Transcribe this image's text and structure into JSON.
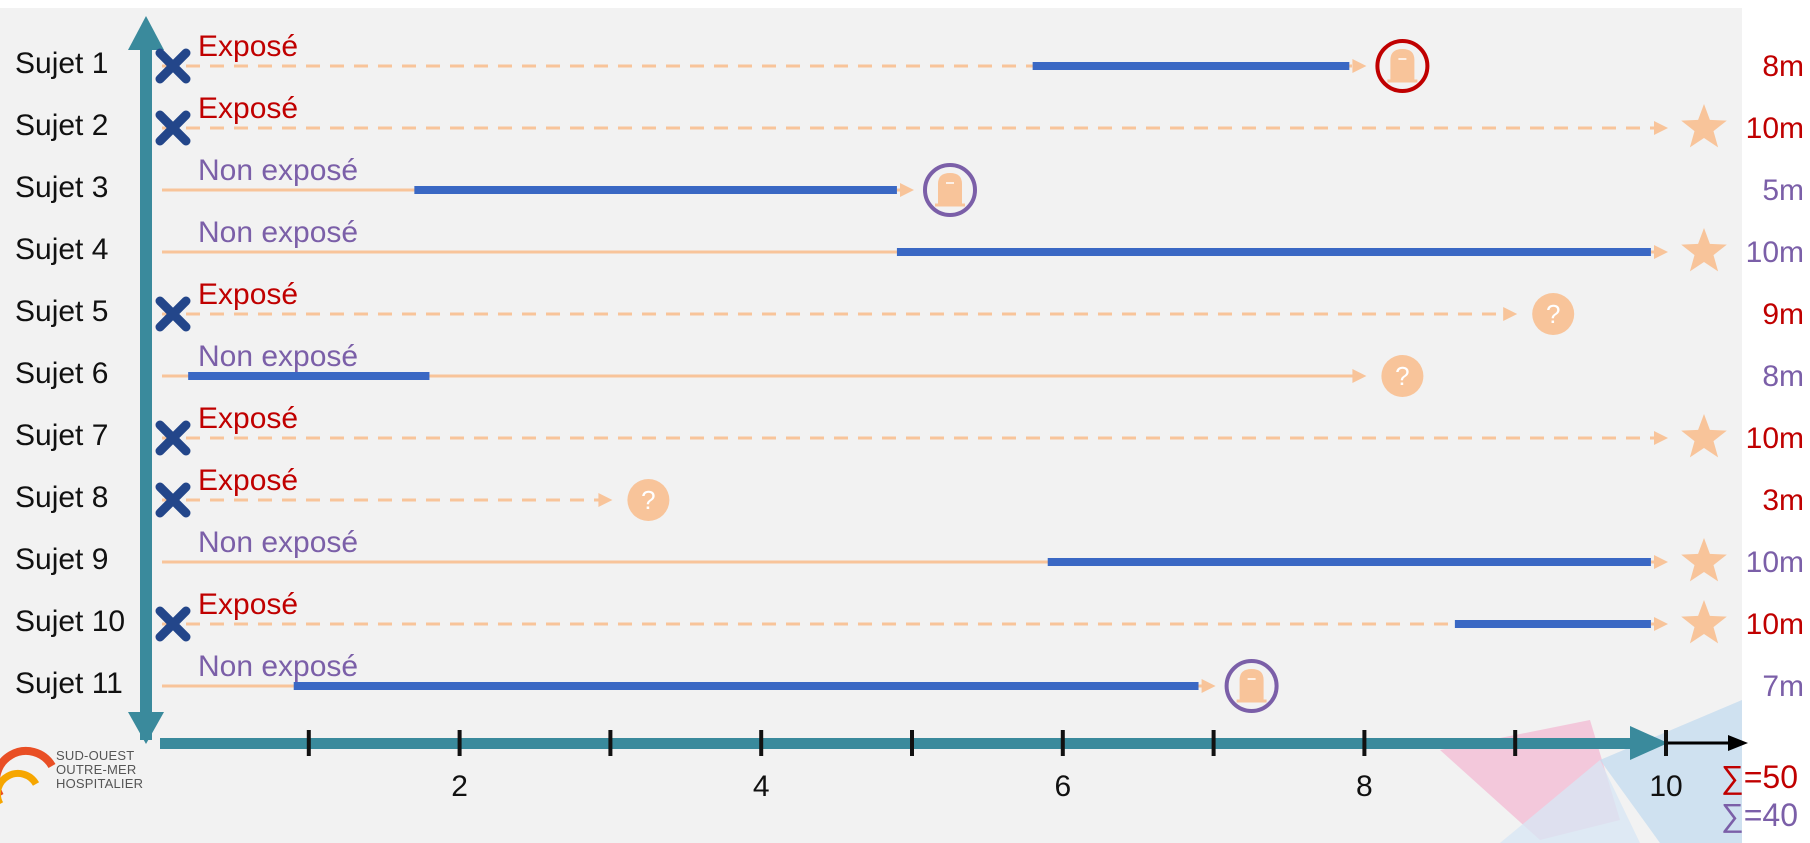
{
  "colors": {
    "exposed": "#c00000",
    "unexposed": "#7b5fa8",
    "axis": "#3a8a9c",
    "followup": "#f8c49a",
    "event_bar": "#3a68c4",
    "icon": "#f8c49a"
  },
  "subjects": [
    {
      "label": "Sujet 1",
      "status": "Exposé",
      "exposed": true,
      "end_icon": "tombstone-icon",
      "event_start": 5.8,
      "event_end": 7.9,
      "followup_end": 8,
      "duration": "8m"
    },
    {
      "label": "Sujet 2",
      "status": "Exposé",
      "exposed": true,
      "end_icon": "star-icon",
      "event_start": null,
      "event_end": null,
      "followup_end": 10,
      "duration": "10m"
    },
    {
      "label": "Sujet 3",
      "status": "Non exposé",
      "exposed": false,
      "end_icon": "tombstone-icon",
      "event_start": 1.7,
      "event_end": 4.9,
      "followup_end": 5,
      "duration": "5m"
    },
    {
      "label": "Sujet 4",
      "status": "Non exposé",
      "exposed": false,
      "end_icon": "star-icon",
      "event_start": 4.9,
      "event_end": 9.9,
      "followup_end": 10,
      "duration": "10m"
    },
    {
      "label": "Sujet 5",
      "status": "Exposé",
      "exposed": true,
      "end_icon": "question-icon",
      "event_start": null,
      "event_end": null,
      "followup_end": 9,
      "duration": "9m"
    },
    {
      "label": "Sujet 6",
      "status": "Non exposé",
      "exposed": false,
      "end_icon": "question-icon",
      "event_start": 0.2,
      "event_end": 1.8,
      "followup_end": 8,
      "duration": "8m"
    },
    {
      "label": "Sujet 7",
      "status": "Exposé",
      "exposed": true,
      "end_icon": "star-icon",
      "event_start": null,
      "event_end": null,
      "followup_end": 10,
      "duration": "10m"
    },
    {
      "label": "Sujet 8",
      "status": "Exposé",
      "exposed": true,
      "end_icon": "question-icon",
      "event_start": null,
      "event_end": null,
      "followup_end": 3,
      "duration": "3m"
    },
    {
      "label": "Sujet 9",
      "status": "Non exposé",
      "exposed": false,
      "end_icon": "star-icon",
      "event_start": 5.9,
      "event_end": 9.9,
      "followup_end": 10,
      "duration": "10m"
    },
    {
      "label": "Sujet 10",
      "status": "Exposé",
      "exposed": true,
      "end_icon": "star-icon",
      "event_start": 8.6,
      "event_end": 9.9,
      "followup_end": 10,
      "duration": "10m"
    },
    {
      "label": "Sujet 11",
      "status": "Non exposé",
      "exposed": false,
      "end_icon": "tombstone-icon",
      "event_start": 0.9,
      "event_end": 6.9,
      "followup_end": 7,
      "duration": "7m"
    }
  ],
  "x_axis": {
    "min": 0,
    "max": 10,
    "tick_values": [
      1,
      2,
      3,
      4,
      5,
      6,
      7,
      8,
      9,
      10
    ],
    "tick_labels": [
      "2",
      "4",
      "6",
      "8",
      "10"
    ]
  },
  "sums": {
    "exposed": "∑=50",
    "unexposed": "∑=40"
  },
  "logo": {
    "line1": "SUD-OUEST",
    "line2": "OUTRE-MER",
    "line3": "HOSPITALIER"
  }
}
